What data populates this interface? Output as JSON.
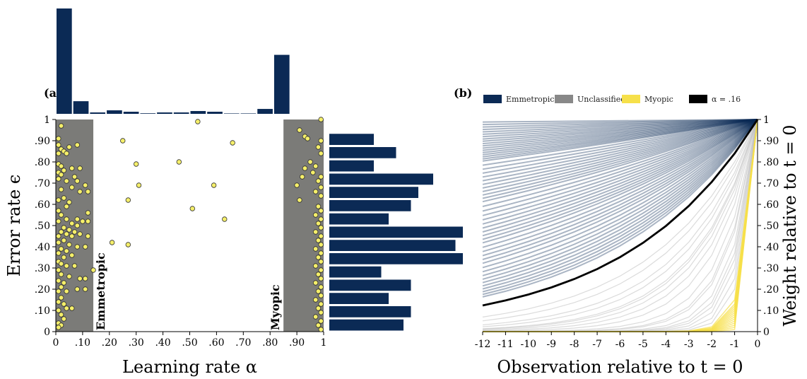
{
  "colors": {
    "navy": "#0b2a55",
    "gray_region": "#7b7b78",
    "point": "#f5ef6a",
    "emmetropic": "#0b2a55",
    "unclassified": "#888888",
    "myopic": "#f6e04a",
    "alpha_line": "#000000"
  },
  "chart_data": [
    {
      "panel_label": "(a)",
      "type": "scatter",
      "xlabel": "Learning rate α",
      "ylabel": "Error rate ϵ",
      "xlim": [
        0,
        1
      ],
      "ylim": [
        0,
        1
      ],
      "x_ticks": [
        0,
        0.1,
        0.2,
        0.3,
        0.4,
        0.5,
        0.6,
        0.7,
        0.8,
        0.9,
        1
      ],
      "x_tick_labels": [
        "0",
        ".10",
        ".20",
        ".30",
        ".40",
        ".50",
        ".60",
        ".70",
        ".80",
        ".90",
        "1"
      ],
      "y_ticks": [
        0,
        0.1,
        0.2,
        0.3,
        0.4,
        0.5,
        0.6,
        0.7,
        0.8,
        0.9,
        1
      ],
      "y_tick_labels": [
        "0",
        ".10",
        ".20",
        ".30",
        ".40",
        ".50",
        ".60",
        ".70",
        ".80",
        ".90",
        "1"
      ],
      "regions": [
        {
          "label": "Emmetropic",
          "x_from": 0,
          "x_to": 0.14
        },
        {
          "label": "Myopic",
          "x_from": 0.85,
          "x_to": 1
        }
      ],
      "points": [
        [
          0.02,
          0.97
        ],
        [
          0.01,
          0.91
        ],
        [
          0.01,
          0.88
        ],
        [
          0.02,
          0.86
        ],
        [
          0.05,
          0.87
        ],
        [
          0.03,
          0.85
        ],
        [
          0.08,
          0.88
        ],
        [
          0.01,
          0.84
        ],
        [
          0.04,
          0.84
        ],
        [
          0.01,
          0.79
        ],
        [
          0.02,
          0.78
        ],
        [
          0.03,
          0.76
        ],
        [
          0.01,
          0.75
        ],
        [
          0.06,
          0.77
        ],
        [
          0.09,
          0.77
        ],
        [
          0.02,
          0.74
        ],
        [
          0.07,
          0.73
        ],
        [
          0.01,
          0.72
        ],
        [
          0.04,
          0.71
        ],
        [
          0.08,
          0.71
        ],
        [
          0.11,
          0.69
        ],
        [
          0.06,
          0.68
        ],
        [
          0.12,
          0.66
        ],
        [
          0.02,
          0.67
        ],
        [
          0.09,
          0.66
        ],
        [
          0.03,
          0.63
        ],
        [
          0.01,
          0.62
        ],
        [
          0.05,
          0.61
        ],
        [
          0.04,
          0.59
        ],
        [
          0.01,
          0.57
        ],
        [
          0.02,
          0.55
        ],
        [
          0.12,
          0.56
        ],
        [
          0.08,
          0.53
        ],
        [
          0.04,
          0.53
        ],
        [
          0.01,
          0.52
        ],
        [
          0.06,
          0.51
        ],
        [
          0.1,
          0.52
        ],
        [
          0.12,
          0.52
        ],
        [
          0.03,
          0.49
        ],
        [
          0.05,
          0.48
        ],
        [
          0.08,
          0.5
        ],
        [
          0.02,
          0.47
        ],
        [
          0.04,
          0.46
        ],
        [
          0.07,
          0.47
        ],
        [
          0.09,
          0.46
        ],
        [
          0.01,
          0.45
        ],
        [
          0.06,
          0.45
        ],
        [
          0.12,
          0.45
        ],
        [
          0.03,
          0.43
        ],
        [
          0.01,
          0.42
        ],
        [
          0.05,
          0.41
        ],
        [
          0.08,
          0.4
        ],
        [
          0.02,
          0.39
        ],
        [
          0.04,
          0.38
        ],
        [
          0.01,
          0.37
        ],
        [
          0.06,
          0.36
        ],
        [
          0.11,
          0.4
        ],
        [
          0.03,
          0.35
        ],
        [
          0.01,
          0.33
        ],
        [
          0.02,
          0.32
        ],
        [
          0.04,
          0.31
        ],
        [
          0.07,
          0.31
        ],
        [
          0.01,
          0.29
        ],
        [
          0.14,
          0.29
        ],
        [
          0.02,
          0.27
        ],
        [
          0.05,
          0.26
        ],
        [
          0.09,
          0.25
        ],
        [
          0.11,
          0.25
        ],
        [
          0.01,
          0.24
        ],
        [
          0.03,
          0.23
        ],
        [
          0.02,
          0.21
        ],
        [
          0.01,
          0.19
        ],
        [
          0.08,
          0.2
        ],
        [
          0.11,
          0.2
        ],
        [
          0.04,
          0.19
        ],
        [
          0.02,
          0.16
        ],
        [
          0.01,
          0.14
        ],
        [
          0.03,
          0.13
        ],
        [
          0.04,
          0.11
        ],
        [
          0.06,
          0.11
        ],
        [
          0.01,
          0.1
        ],
        [
          0.02,
          0.08
        ],
        [
          0.03,
          0.06
        ],
        [
          0.01,
          0.04
        ],
        [
          0.02,
          0.03
        ],
        [
          0.01,
          0.02
        ],
        [
          0.53,
          0.99
        ],
        [
          0.25,
          0.9
        ],
        [
          0.66,
          0.89
        ],
        [
          0.46,
          0.8
        ],
        [
          0.3,
          0.79
        ],
        [
          0.31,
          0.69
        ],
        [
          0.59,
          0.69
        ],
        [
          0.27,
          0.62
        ],
        [
          0.51,
          0.58
        ],
        [
          0.63,
          0.53
        ],
        [
          0.21,
          0.42
        ],
        [
          0.27,
          0.41
        ],
        [
          0.99,
          1.0
        ],
        [
          0.91,
          0.95
        ],
        [
          0.93,
          0.92
        ],
        [
          0.94,
          0.91
        ],
        [
          0.99,
          0.9
        ],
        [
          0.98,
          0.87
        ],
        [
          0.99,
          0.84
        ],
        [
          0.95,
          0.8
        ],
        [
          0.97,
          0.78
        ],
        [
          0.93,
          0.77
        ],
        [
          0.96,
          0.75
        ],
        [
          0.92,
          0.73
        ],
        [
          0.99,
          0.73
        ],
        [
          0.9,
          0.69
        ],
        [
          0.98,
          0.71
        ],
        [
          0.99,
          0.68
        ],
        [
          0.97,
          0.66
        ],
        [
          0.99,
          0.64
        ],
        [
          0.91,
          0.62
        ],
        [
          0.98,
          0.59
        ],
        [
          0.99,
          0.57
        ],
        [
          0.97,
          0.55
        ],
        [
          0.99,
          0.53
        ],
        [
          0.98,
          0.51
        ],
        [
          0.99,
          0.49
        ],
        [
          0.97,
          0.47
        ],
        [
          0.99,
          0.45
        ],
        [
          0.98,
          0.43
        ],
        [
          0.99,
          0.41
        ],
        [
          0.97,
          0.39
        ],
        [
          0.99,
          0.37
        ],
        [
          0.98,
          0.35
        ],
        [
          0.99,
          0.33
        ],
        [
          0.97,
          0.31
        ],
        [
          0.99,
          0.29
        ],
        [
          0.98,
          0.27
        ],
        [
          0.99,
          0.25
        ],
        [
          0.97,
          0.23
        ],
        [
          0.99,
          0.21
        ],
        [
          0.98,
          0.19
        ],
        [
          0.99,
          0.17
        ],
        [
          0.97,
          0.15
        ],
        [
          0.99,
          0.13
        ],
        [
          0.98,
          0.11
        ],
        [
          0.99,
          0.09
        ],
        [
          0.97,
          0.07
        ],
        [
          0.99,
          0.05
        ],
        [
          0.98,
          0.03
        ],
        [
          0.99,
          0.01
        ]
      ],
      "top_histogram": {
        "bin_width": 0.0625,
        "counts": [
          75,
          9,
          1,
          2.5,
          1.5,
          0.4,
          1,
          1,
          2,
          1.5,
          0.3,
          0.3,
          3.5,
          42
        ]
      },
      "right_histogram": {
        "bin_width": 0.0625,
        "counts": [
          10,
          11,
          8,
          11,
          7,
          18,
          17,
          18,
          8,
          11,
          12,
          14,
          6,
          9,
          6
        ]
      }
    },
    {
      "panel_label": "(b)",
      "type": "line",
      "xlabel": "Observation relative to t = 0",
      "ylabel": "Weight relative to t = 0",
      "xlim": [
        -12,
        0
      ],
      "ylim": [
        0,
        1
      ],
      "x_ticks": [
        -12,
        -11,
        -10,
        -9,
        -8,
        -7,
        -6,
        -5,
        -4,
        -3,
        -2,
        -1,
        0
      ],
      "x_tick_labels": [
        "-12",
        "-11",
        "-10",
        "-9",
        "-8",
        "-7",
        "-6",
        "-5",
        "-4",
        "-3",
        "-2",
        "-1",
        "0"
      ],
      "y_ticks": [
        0,
        0.1,
        0.2,
        0.3,
        0.4,
        0.5,
        0.6,
        0.7,
        0.8,
        0.9,
        1
      ],
      "y_tick_labels": [
        "0",
        ".10",
        ".20",
        ".30",
        ".40",
        ".50",
        ".60",
        ".70",
        ".80",
        ".90",
        "1"
      ],
      "legend": [
        "Emmetropic",
        "Unclassified",
        "Myopic",
        "α = .16"
      ],
      "legend_position": "top",
      "weight_formula": "(1 - alpha)^(-x)",
      "series": [
        {
          "group": "Emmetropic",
          "alphas": [
            0.001,
            0.002,
            0.003,
            0.004,
            0.005,
            0.006,
            0.007,
            0.008,
            0.009,
            0.01,
            0.011,
            0.012,
            0.013,
            0.014,
            0.015,
            0.016,
            0.017,
            0.018,
            0.02,
            0.022,
            0.024,
            0.026,
            0.028,
            0.03,
            0.032,
            0.034,
            0.036,
            0.038,
            0.04,
            0.043,
            0.046,
            0.049,
            0.052,
            0.055,
            0.058,
            0.061,
            0.064,
            0.067,
            0.07,
            0.074,
            0.078,
            0.082,
            0.086,
            0.09,
            0.095,
            0.1,
            0.105,
            0.11,
            0.115,
            0.12,
            0.125,
            0.13,
            0.135,
            0.14
          ]
        },
        {
          "group": "Unclassified",
          "alphas": [
            0.2,
            0.22,
            0.25,
            0.27,
            0.3,
            0.31,
            0.33,
            0.36,
            0.4,
            0.46,
            0.51,
            0.53,
            0.59,
            0.63,
            0.66,
            0.7,
            0.75,
            0.8
          ]
        },
        {
          "group": "Myopic",
          "alphas": [
            0.85,
            0.87,
            0.88,
            0.89,
            0.9,
            0.91,
            0.92,
            0.93,
            0.94,
            0.95,
            0.96,
            0.97,
            0.98,
            0.99
          ]
        },
        {
          "group": "α = .16",
          "alphas": [
            0.16
          ]
        }
      ]
    }
  ]
}
